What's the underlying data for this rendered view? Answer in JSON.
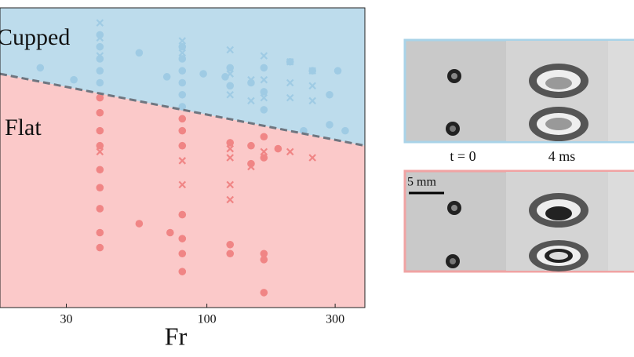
{
  "chart_data": {
    "type": "scatter",
    "xlabel": "Fr",
    "log_x": true,
    "xlim": [
      17,
      387
    ],
    "ylim": [
      0,
      1
    ],
    "xticks": [
      30,
      100,
      300
    ],
    "annotations": [
      "Cupped",
      "Flat"
    ],
    "region_colors": [
      "#bddcec",
      "#fbc9c9"
    ],
    "boundary": {
      "x": [
        17,
        387
      ],
      "values": [
        0.78,
        0.54
      ],
      "color": "#6f7680"
    },
    "series": [
      {
        "marker": "o",
        "color": "#9fcbe4",
        "x": [
          24,
          32,
          56,
          71,
          97,
          40,
          40,
          40,
          40,
          40,
          81,
          81,
          81,
          81,
          81,
          81,
          117,
          122,
          122,
          146,
          163,
          163,
          163,
          204,
          247,
          286,
          307,
          286,
          327,
          229
        ],
        "values": [
          0.8,
          0.76,
          0.85,
          0.77,
          0.78,
          0.91,
          0.87,
          0.83,
          0.79,
          0.75,
          0.87,
          0.83,
          0.79,
          0.75,
          0.71,
          0.67,
          0.77,
          0.8,
          0.74,
          0.75,
          0.8,
          0.72,
          0.66,
          0.82,
          0.79,
          0.71,
          0.79,
          0.61,
          0.59,
          0.59
        ]
      },
      {
        "marker": "o",
        "color": "#f08585",
        "x": [
          40,
          40,
          40,
          40,
          40,
          40,
          40,
          40,
          40,
          56,
          73,
          81,
          81,
          81,
          81,
          81,
          81,
          81,
          122,
          122,
          122,
          146,
          146,
          163,
          163,
          163,
          163,
          163,
          184
        ],
        "values": [
          0.7,
          0.65,
          0.59,
          0.54,
          0.46,
          0.4,
          0.33,
          0.25,
          0.2,
          0.28,
          0.25,
          0.63,
          0.59,
          0.54,
          0.31,
          0.23,
          0.18,
          0.12,
          0.55,
          0.21,
          0.18,
          0.54,
          0.48,
          0.57,
          0.5,
          0.18,
          0.16,
          0.05,
          0.53
        ]
      },
      {
        "marker": "x",
        "color": "#9fcbe4",
        "x": [
          40,
          40,
          40,
          81,
          81,
          122,
          122,
          122,
          146,
          146,
          163,
          163,
          163,
          204,
          204,
          204,
          247,
          247,
          247
        ],
        "values": [
          0.95,
          0.9,
          0.84,
          0.89,
          0.85,
          0.86,
          0.78,
          0.71,
          0.76,
          0.69,
          0.84,
          0.76,
          0.7,
          0.82,
          0.75,
          0.7,
          0.79,
          0.74,
          0.69
        ]
      },
      {
        "marker": "x",
        "color": "#f08585",
        "x": [
          40,
          81,
          81,
          122,
          122,
          122,
          122,
          146,
          163,
          204,
          247
        ],
        "values": [
          0.52,
          0.49,
          0.41,
          0.53,
          0.5,
          0.41,
          0.36,
          0.47,
          0.52,
          0.52,
          0.5
        ]
      }
    ]
  },
  "panels": {
    "time_labels": [
      "t = 0",
      "4 ms"
    ],
    "scale_label": "5 mm"
  }
}
